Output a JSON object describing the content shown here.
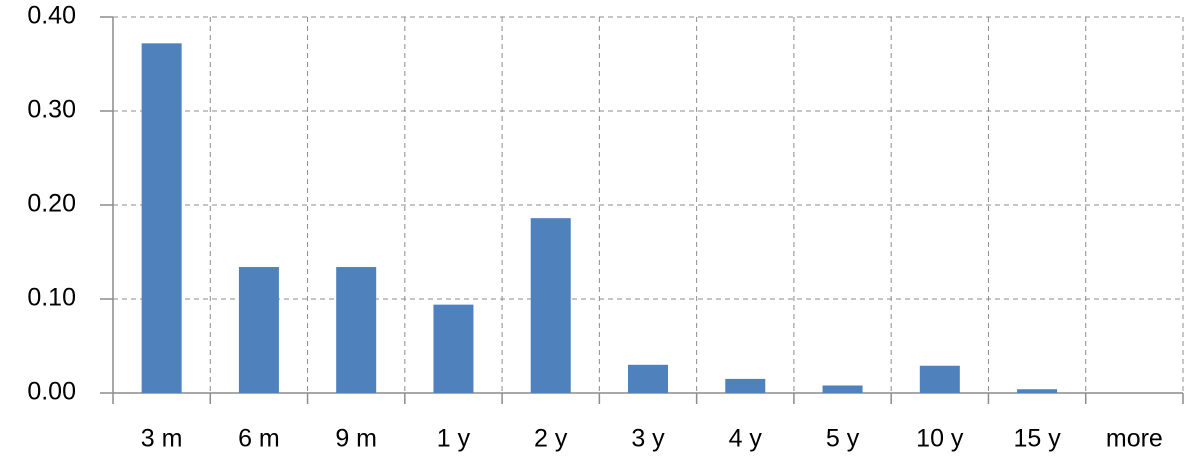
{
  "chart_data": {
    "type": "bar",
    "categories": [
      "3 m",
      "6 m",
      "9 m",
      "1 y",
      "2 y",
      "3 y",
      "4 y",
      "5 y",
      "10 y",
      "15 y",
      "more"
    ],
    "values": [
      0.372,
      0.134,
      0.134,
      0.094,
      0.186,
      0.03,
      0.015,
      0.008,
      0.029,
      0.004,
      0
    ],
    "color": "#4f81bd",
    "ylim": [
      0,
      0.4
    ],
    "yticks": [
      {
        "value": 0,
        "label": "0.00"
      },
      {
        "value": 0.1,
        "label": "0.10"
      },
      {
        "value": 0.2,
        "label": "0.20"
      },
      {
        "value": 0.3,
        "label": "0.30"
      },
      {
        "value": 0.4,
        "label": "0.40"
      }
    ],
    "grid": true
  }
}
